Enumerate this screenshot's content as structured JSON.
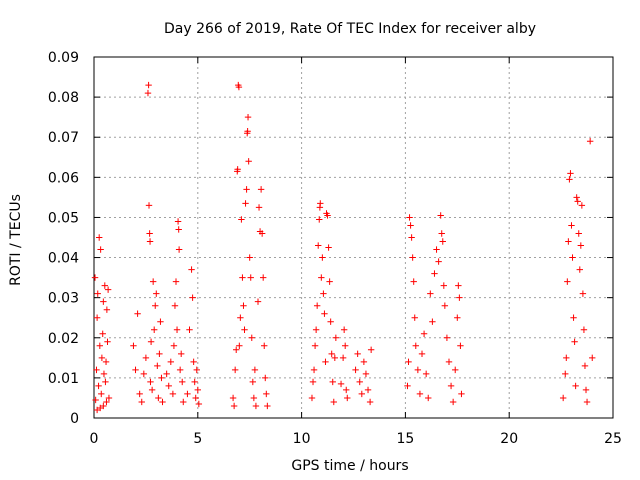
{
  "chart_data": {
    "type": "scatter",
    "title": "Day 266 of 2019, Rate Of TEC Index for receiver alby",
    "xlabel": "GPS time / hours",
    "ylabel": "ROTI / TECUs",
    "xlim": [
      0,
      25
    ],
    "ylim": [
      0,
      0.09
    ],
    "x_ticks": [
      0,
      5,
      10,
      15,
      20,
      25
    ],
    "x_tick_labels": [
      "0",
      "5",
      "10",
      "15",
      "20",
      "25"
    ],
    "y_ticks": [
      0,
      0.01,
      0.02,
      0.03,
      0.04,
      0.05,
      0.06,
      0.07,
      0.08,
      0.09
    ],
    "y_tick_labels": [
      "0",
      "0.01",
      "0.02",
      "0.03",
      "0.04",
      "0.05",
      "0.06",
      "0.07",
      "0.08",
      "0.09"
    ],
    "grid": true,
    "legend": "none",
    "marker": "plus",
    "color": "#ff0000",
    "series": [
      {
        "name": "ROTI",
        "points": [
          [
            0.05,
            0.035
          ],
          [
            0.08,
            0.0045
          ],
          [
            0.12,
            0.012
          ],
          [
            0.15,
            0.025
          ],
          [
            0.18,
            0.031
          ],
          [
            0.22,
            0.008
          ],
          [
            0.25,
            0.045
          ],
          [
            0.28,
            0.018
          ],
          [
            0.32,
            0.042
          ],
          [
            0.35,
            0.006
          ],
          [
            0.38,
            0.015
          ],
          [
            0.42,
            0.021
          ],
          [
            0.45,
            0.029
          ],
          [
            0.48,
            0.011
          ],
          [
            0.52,
            0.033
          ],
          [
            0.55,
            0.009
          ],
          [
            0.58,
            0.014
          ],
          [
            0.62,
            0.027
          ],
          [
            0.65,
            0.019
          ],
          [
            0.68,
            0.032
          ],
          [
            0.72,
            0.005
          ],
          [
            0.15,
            0.002
          ],
          [
            0.3,
            0.0025
          ],
          [
            0.45,
            0.003
          ],
          [
            0.6,
            0.004
          ],
          [
            1.9,
            0.018
          ],
          [
            2.0,
            0.012
          ],
          [
            2.1,
            0.026
          ],
          [
            2.2,
            0.006
          ],
          [
            2.3,
            0.004
          ],
          [
            2.4,
            0.011
          ],
          [
            2.5,
            0.015
          ],
          [
            2.6,
            0.081
          ],
          [
            2.63,
            0.083
          ],
          [
            2.65,
            0.053
          ],
          [
            2.68,
            0.046
          ],
          [
            2.7,
            0.044
          ],
          [
            2.72,
            0.009
          ],
          [
            2.75,
            0.019
          ],
          [
            2.8,
            0.007
          ],
          [
            2.85,
            0.034
          ],
          [
            2.9,
            0.022
          ],
          [
            2.95,
            0.028
          ],
          [
            3.0,
            0.031
          ],
          [
            3.05,
            0.013
          ],
          [
            3.1,
            0.005
          ],
          [
            3.15,
            0.016
          ],
          [
            3.2,
            0.024
          ],
          [
            3.25,
            0.01
          ],
          [
            3.3,
            0.004
          ],
          [
            3.5,
            0.011
          ],
          [
            3.6,
            0.008
          ],
          [
            3.7,
            0.014
          ],
          [
            3.8,
            0.006
          ],
          [
            3.85,
            0.018
          ],
          [
            3.9,
            0.028
          ],
          [
            3.95,
            0.034
          ],
          [
            4.0,
            0.022
          ],
          [
            4.05,
            0.049
          ],
          [
            4.08,
            0.047
          ],
          [
            4.1,
            0.042
          ],
          [
            4.15,
            0.012
          ],
          [
            4.2,
            0.016
          ],
          [
            4.25,
            0.009
          ],
          [
            4.3,
            0.004
          ],
          [
            4.5,
            0.006
          ],
          [
            4.6,
            0.022
          ],
          [
            4.7,
            0.037
          ],
          [
            4.75,
            0.03
          ],
          [
            4.8,
            0.014
          ],
          [
            4.85,
            0.009
          ],
          [
            4.9,
            0.005
          ],
          [
            4.95,
            0.012
          ],
          [
            5.0,
            0.007
          ],
          [
            5.05,
            0.0035
          ],
          [
            6.7,
            0.005
          ],
          [
            6.75,
            0.003
          ],
          [
            6.8,
            0.012
          ],
          [
            6.85,
            0.017
          ],
          [
            6.9,
            0.0615
          ],
          [
            6.92,
            0.062
          ],
          [
            6.95,
            0.083
          ],
          [
            6.98,
            0.0825
          ],
          [
            7.0,
            0.018
          ],
          [
            7.05,
            0.025
          ],
          [
            7.1,
            0.0495
          ],
          [
            7.15,
            0.035
          ],
          [
            7.2,
            0.028
          ],
          [
            7.25,
            0.022
          ],
          [
            7.3,
            0.0535
          ],
          [
            7.35,
            0.057
          ],
          [
            7.38,
            0.071
          ],
          [
            7.4,
            0.0715
          ],
          [
            7.42,
            0.075
          ],
          [
            7.45,
            0.064
          ],
          [
            7.5,
            0.04
          ],
          [
            7.55,
            0.035
          ],
          [
            7.6,
            0.02
          ],
          [
            7.65,
            0.009
          ],
          [
            7.7,
            0.005
          ],
          [
            7.75,
            0.012
          ],
          [
            7.8,
            0.003
          ],
          [
            7.9,
            0.029
          ],
          [
            7.95,
            0.0525
          ],
          [
            8.0,
            0.0465
          ],
          [
            8.05,
            0.057
          ],
          [
            8.1,
            0.046
          ],
          [
            8.15,
            0.035
          ],
          [
            8.2,
            0.018
          ],
          [
            8.25,
            0.01
          ],
          [
            8.3,
            0.006
          ],
          [
            8.35,
            0.003
          ],
          [
            10.5,
            0.005
          ],
          [
            10.55,
            0.009
          ],
          [
            10.6,
            0.012
          ],
          [
            10.65,
            0.018
          ],
          [
            10.7,
            0.022
          ],
          [
            10.75,
            0.028
          ],
          [
            10.8,
            0.043
          ],
          [
            10.85,
            0.0495
          ],
          [
            10.88,
            0.0525
          ],
          [
            10.9,
            0.0535
          ],
          [
            10.95,
            0.035
          ],
          [
            11.0,
            0.04
          ],
          [
            11.05,
            0.031
          ],
          [
            11.1,
            0.026
          ],
          [
            11.15,
            0.014
          ],
          [
            11.2,
            0.051
          ],
          [
            11.25,
            0.0505
          ],
          [
            11.3,
            0.0425
          ],
          [
            11.35,
            0.034
          ],
          [
            11.4,
            0.024
          ],
          [
            11.45,
            0.016
          ],
          [
            11.5,
            0.009
          ],
          [
            11.55,
            0.004
          ],
          [
            11.6,
            0.015
          ],
          [
            11.65,
            0.02
          ],
          [
            11.9,
            0.0085
          ],
          [
            12.0,
            0.015
          ],
          [
            12.05,
            0.022
          ],
          [
            12.1,
            0.018
          ],
          [
            12.15,
            0.007
          ],
          [
            12.2,
            0.005
          ],
          [
            12.6,
            0.012
          ],
          [
            12.7,
            0.016
          ],
          [
            12.8,
            0.009
          ],
          [
            12.9,
            0.006
          ],
          [
            13.0,
            0.014
          ],
          [
            13.1,
            0.011
          ],
          [
            13.2,
            0.007
          ],
          [
            13.3,
            0.004
          ],
          [
            13.35,
            0.017
          ],
          [
            15.1,
            0.008
          ],
          [
            15.15,
            0.014
          ],
          [
            15.2,
            0.05
          ],
          [
            15.25,
            0.048
          ],
          [
            15.3,
            0.045
          ],
          [
            15.35,
            0.04
          ],
          [
            15.4,
            0.034
          ],
          [
            15.45,
            0.025
          ],
          [
            15.5,
            0.018
          ],
          [
            15.6,
            0.012
          ],
          [
            15.7,
            0.006
          ],
          [
            15.8,
            0.016
          ],
          [
            15.9,
            0.021
          ],
          [
            16.0,
            0.011
          ],
          [
            16.1,
            0.005
          ],
          [
            16.2,
            0.031
          ],
          [
            16.3,
            0.024
          ],
          [
            16.4,
            0.036
          ],
          [
            16.5,
            0.042
          ],
          [
            16.6,
            0.039
          ],
          [
            16.7,
            0.0505
          ],
          [
            16.75,
            0.046
          ],
          [
            16.8,
            0.044
          ],
          [
            16.85,
            0.033
          ],
          [
            16.9,
            0.028
          ],
          [
            17.0,
            0.02
          ],
          [
            17.1,
            0.014
          ],
          [
            17.2,
            0.008
          ],
          [
            17.3,
            0.004
          ],
          [
            17.4,
            0.012
          ],
          [
            17.5,
            0.025
          ],
          [
            17.55,
            0.033
          ],
          [
            17.6,
            0.03
          ],
          [
            17.65,
            0.018
          ],
          [
            17.7,
            0.006
          ],
          [
            22.6,
            0.005
          ],
          [
            22.7,
            0.011
          ],
          [
            22.75,
            0.015
          ],
          [
            22.8,
            0.034
          ],
          [
            22.85,
            0.044
          ],
          [
            22.9,
            0.0595
          ],
          [
            22.95,
            0.061
          ],
          [
            23.0,
            0.048
          ],
          [
            23.05,
            0.04
          ],
          [
            23.1,
            0.025
          ],
          [
            23.15,
            0.019
          ],
          [
            23.2,
            0.008
          ],
          [
            23.25,
            0.055
          ],
          [
            23.3,
            0.054
          ],
          [
            23.35,
            0.046
          ],
          [
            23.4,
            0.037
          ],
          [
            23.45,
            0.043
          ],
          [
            23.5,
            0.053
          ],
          [
            23.55,
            0.031
          ],
          [
            23.6,
            0.022
          ],
          [
            23.65,
            0.013
          ],
          [
            23.7,
            0.007
          ],
          [
            23.75,
            0.004
          ],
          [
            23.9,
            0.069
          ],
          [
            24.0,
            0.015
          ]
        ]
      }
    ]
  }
}
